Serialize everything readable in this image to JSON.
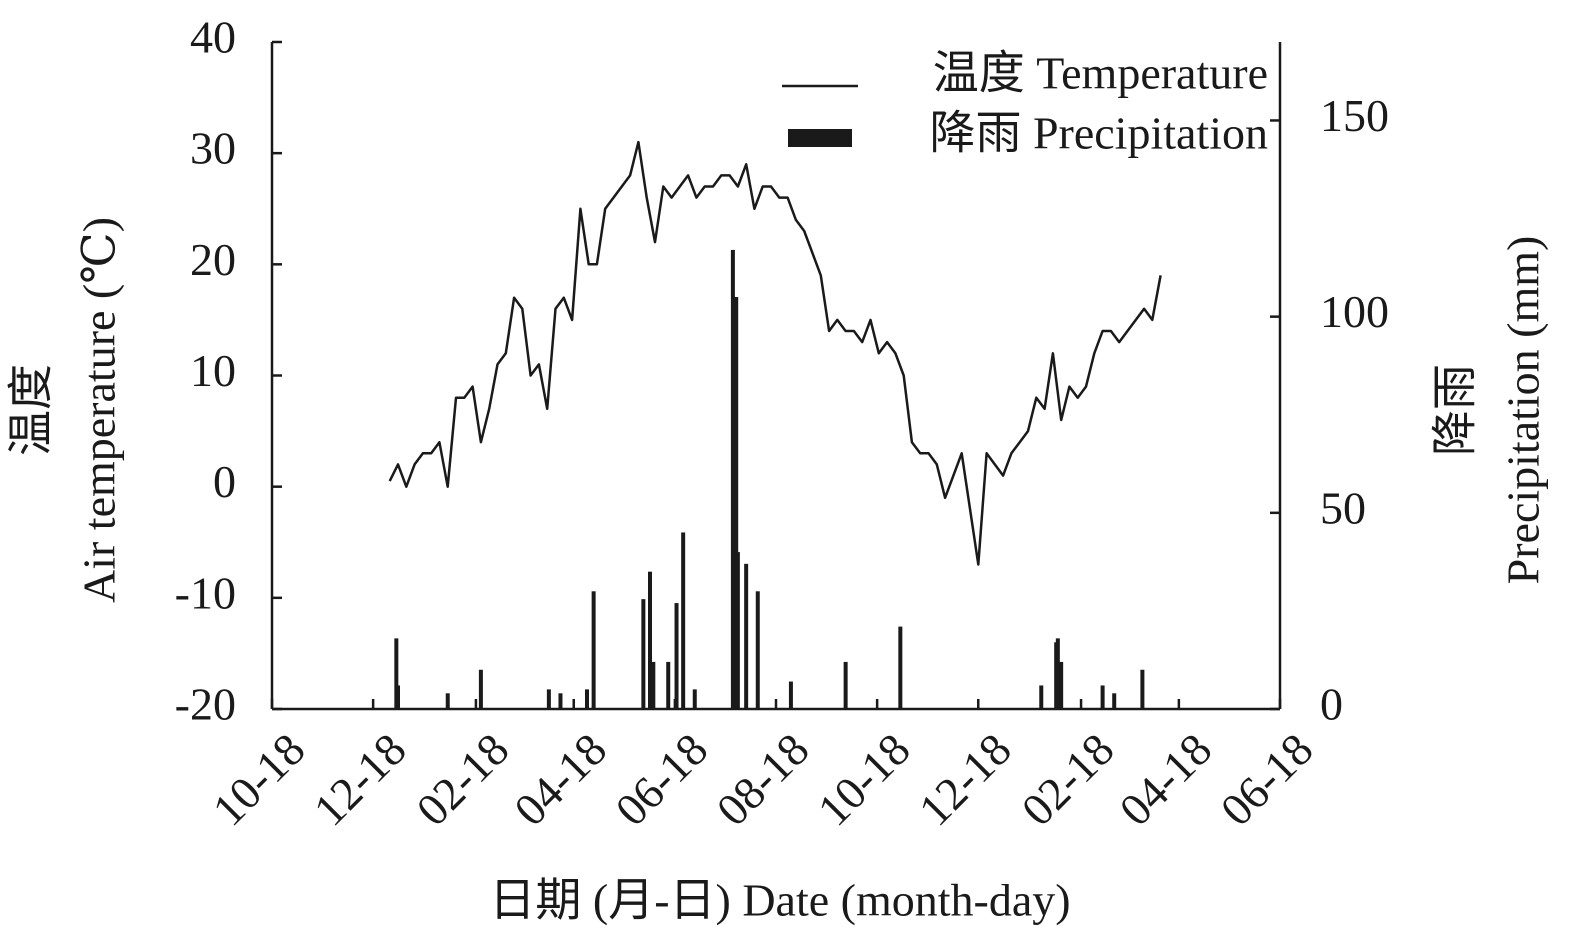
{
  "chart_data": {
    "type": "combo",
    "xlabel": "日期 (月-日) Date (month-day)",
    "ylabel": [
      "温度",
      "Air temperature (℃)"
    ],
    "y2label": [
      "降雨",
      "Precipitation (mm)"
    ],
    "xlim": [
      0,
      608
    ],
    "xticks": [
      {
        "value": 0,
        "label": "10-18"
      },
      {
        "value": 61,
        "label": "12-18"
      },
      {
        "value": 123,
        "label": "02-18"
      },
      {
        "value": 182,
        "label": "04-18"
      },
      {
        "value": 243,
        "label": "06-18"
      },
      {
        "value": 304,
        "label": "08-18"
      },
      {
        "value": 365,
        "label": "10-18"
      },
      {
        "value": 426,
        "label": "12-18"
      },
      {
        "value": 488,
        "label": "02-18"
      },
      {
        "value": 547,
        "label": "04-18"
      },
      {
        "value": 608,
        "label": "06-18"
      }
    ],
    "ylim": [
      -20,
      40
    ],
    "yticks": [
      -20,
      -10,
      0,
      10,
      20,
      30,
      40
    ],
    "y2lim": [
      0,
      170
    ],
    "y2ticks": [
      0,
      50,
      100,
      150
    ],
    "legend": "upper right",
    "series": [
      {
        "name": "温度 Temperature",
        "type": "line",
        "color": "#1a1a1a",
        "x": [
          71,
          76,
          81,
          86,
          91,
          96,
          101,
          106,
          111,
          116,
          121,
          126,
          131,
          136,
          141,
          146,
          151,
          156,
          161,
          166,
          171,
          176,
          181,
          186,
          191,
          196,
          201,
          206,
          211,
          216,
          221,
          226,
          231,
          236,
          241,
          246,
          251,
          256,
          261,
          266,
          271,
          276,
          281,
          286,
          291,
          296,
          301,
          306,
          311,
          316,
          321,
          326,
          331,
          336,
          341,
          346,
          351,
          356,
          361,
          366,
          371,
          376,
          381,
          386,
          391,
          396,
          401,
          406,
          411,
          416,
          421,
          426,
          431,
          436,
          441,
          446,
          451,
          456,
          461,
          466,
          471,
          476,
          481,
          486,
          491,
          496,
          501,
          506,
          511,
          516,
          521,
          526,
          531,
          536
        ],
        "values": [
          0.5,
          2,
          0,
          2,
          3,
          3,
          4,
          0,
          8,
          8,
          9,
          4,
          7,
          11,
          12,
          17,
          16,
          10,
          11,
          7,
          16,
          17,
          15,
          25,
          20,
          20,
          25,
          26,
          27,
          28,
          31,
          26,
          22,
          27,
          26,
          27,
          28,
          26,
          27,
          27,
          28,
          28,
          27,
          29,
          25,
          27,
          27,
          26,
          26,
          24,
          23,
          21,
          19,
          14,
          15,
          14,
          14,
          13,
          15,
          12,
          13,
          12,
          10,
          4,
          3,
          3,
          2,
          -1,
          1,
          3,
          -2,
          -7,
          3,
          2,
          1,
          3,
          4,
          5,
          8,
          7,
          12,
          6,
          9,
          8,
          9,
          12,
          14,
          14,
          13,
          14,
          15,
          16,
          15,
          19
        ]
      },
      {
        "name": "降雨 Precipitation",
        "type": "bar",
        "axis": "y2",
        "color": "#1a1a1a",
        "x": [
          75,
          76,
          106,
          126,
          167,
          174,
          190,
          194,
          224,
          228,
          230,
          239,
          244,
          248,
          255,
          278,
          280,
          281,
          286,
          293,
          313,
          346,
          379,
          464,
          473,
          474,
          476,
          501,
          508,
          525
        ],
        "values": [
          18,
          6,
          4,
          10,
          5,
          4,
          5,
          30,
          28,
          35,
          12,
          12,
          27,
          45,
          5,
          117,
          105,
          40,
          37,
          30,
          7,
          12,
          21,
          6,
          17,
          18,
          12,
          6,
          4,
          10
        ]
      }
    ]
  }
}
